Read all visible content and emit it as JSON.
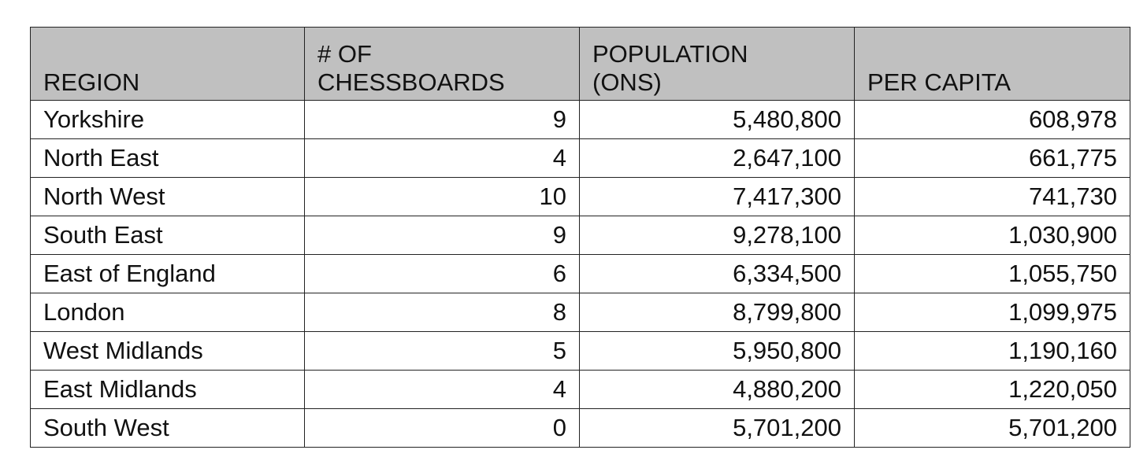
{
  "table": {
    "columns": [
      "REGION",
      "# OF\nCHESSBOARDS",
      "POPULATION\n(ONS)",
      "PER CAPITA"
    ],
    "rows": [
      [
        "Yorkshire",
        "9",
        "5,480,800",
        "608,978"
      ],
      [
        "North East",
        "4",
        "2,647,100",
        "661,775"
      ],
      [
        "North West",
        "10",
        "7,417,300",
        "741,730"
      ],
      [
        "South East",
        "9",
        "9,278,100",
        "1,030,900"
      ],
      [
        "East of England",
        "6",
        "6,334,500",
        "1,055,750"
      ],
      [
        "London",
        "8",
        "8,799,800",
        "1,099,975"
      ],
      [
        "West Midlands",
        "5",
        "5,950,800",
        "1,190,160"
      ],
      [
        "East Midlands",
        "4",
        "4,880,200",
        "1,220,050"
      ],
      [
        "South West",
        "0",
        "5,701,200",
        "5,701,200"
      ]
    ]
  }
}
